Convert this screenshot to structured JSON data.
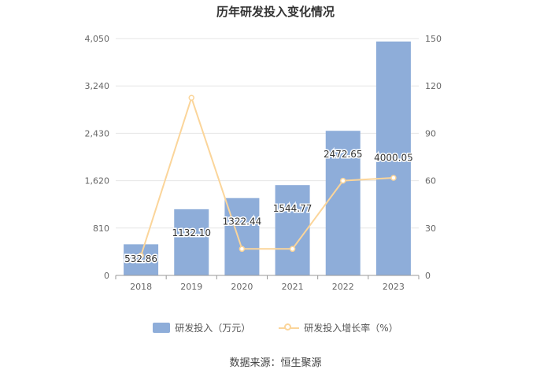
{
  "title": "历年研发投入变化情况",
  "source": "数据来源：恒生聚源",
  "legend": {
    "bar_label": "研发投入（万元）",
    "line_label": "研发投入增长率（%）"
  },
  "colors": {
    "bar": "#8eadd9",
    "line": "#fbd59a",
    "grid": "#e6e6e6",
    "axis_text": "#666666"
  },
  "chart_data": {
    "type": "bar",
    "categories": [
      "2018",
      "2019",
      "2020",
      "2021",
      "2022",
      "2023"
    ],
    "series": [
      {
        "name": "研发投入（万元）",
        "type": "bar",
        "axis": "left",
        "values": [
          532.86,
          1132.1,
          1322.44,
          1544.77,
          2472.65,
          4000.05
        ],
        "labels": [
          "532.86",
          "1132.10",
          "1322.44",
          "1544.77",
          "2472.65",
          "4000.05"
        ]
      },
      {
        "name": "研发投入增长率（%）",
        "type": "line",
        "axis": "right",
        "values": [
          12.5,
          112.5,
          16.8,
          16.8,
          60.0,
          61.8
        ]
      }
    ],
    "y_left": {
      "min": 0,
      "max": 4050,
      "ticks": [
        "0",
        "810",
        "1,620",
        "2,430",
        "3,240",
        "4,050"
      ]
    },
    "y_right": {
      "min": 0,
      "max": 150,
      "ticks": [
        "0",
        "30",
        "60",
        "90",
        "120",
        "150"
      ]
    },
    "grid": true,
    "legend_position": "bottom"
  }
}
